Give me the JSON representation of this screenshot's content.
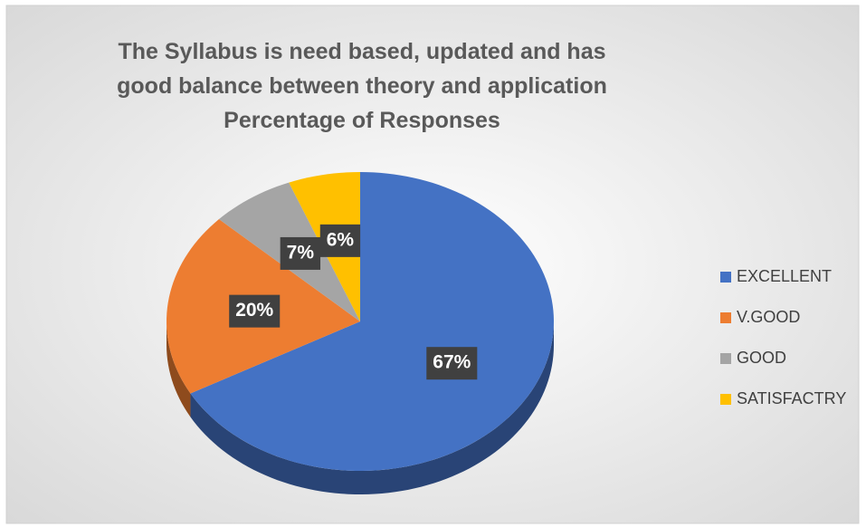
{
  "chart_data": {
    "type": "pie",
    "title": "The Syllabus is need based, updated and has good balance between theory and application Percentage of Responses",
    "categories": [
      "EXCELLENT",
      "V.GOOD",
      "GOOD",
      "SATISFACTRY"
    ],
    "values": [
      67,
      20,
      7,
      6
    ],
    "value_labels": [
      "67%",
      "20%",
      "7%",
      "6%"
    ],
    "colors": [
      "#4472c4",
      "#ed7d31",
      "#a5a5a5",
      "#ffc000"
    ],
    "legend": "right"
  }
}
